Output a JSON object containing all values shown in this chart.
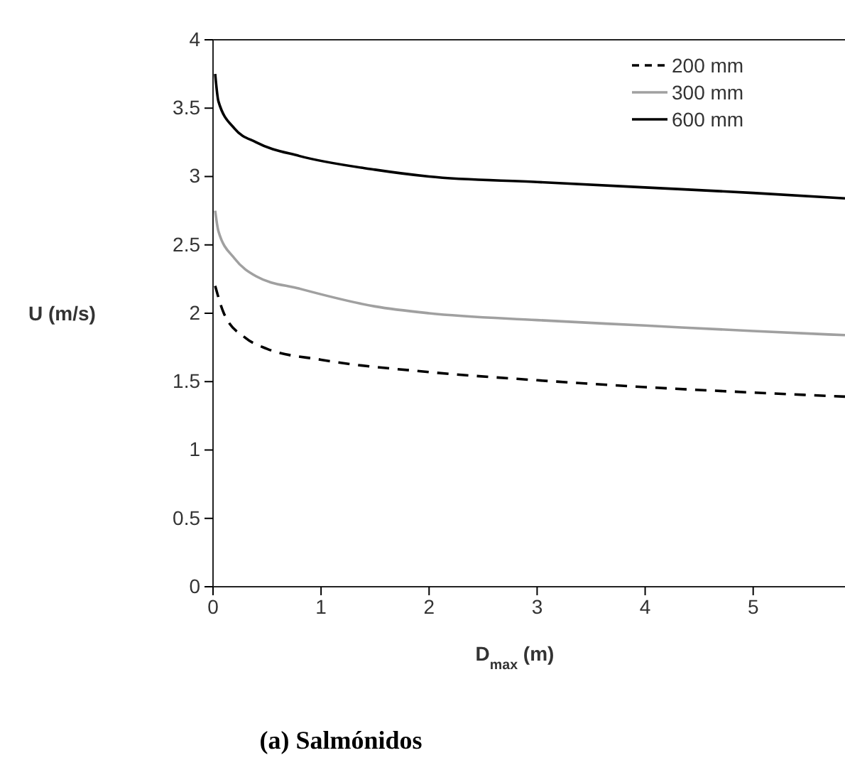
{
  "chart_data": {
    "type": "line",
    "title": "(a) Salmónidos",
    "xlabel": "D$_{max}$ (m)",
    "ylabel": "U (m/s)",
    "xlim": [
      0,
      5.85
    ],
    "ylim": [
      0,
      4
    ],
    "xticks": [
      0,
      1,
      2,
      3,
      4,
      5
    ],
    "yticks": [
      0,
      0.5,
      1,
      1.5,
      2,
      2.5,
      3,
      3.5,
      4
    ],
    "legend": "top right",
    "grid": false,
    "marker": "none",
    "series": [
      {
        "name": "200 mm",
        "color": "#000000",
        "line_style": "dashed",
        "x": [
          0.02,
          0.1,
          0.3,
          0.5,
          1,
          2,
          3,
          4,
          5,
          5.85
        ],
        "values": [
          2.2,
          2.0,
          1.82,
          1.74,
          1.66,
          1.57,
          1.51,
          1.46,
          1.42,
          1.39
        ]
      },
      {
        "name": "300 mm",
        "color": "#a0a0a0",
        "line_style": "solid",
        "x": [
          0.02,
          0.05,
          0.2,
          0.4,
          0.8,
          1.5,
          2,
          3,
          4,
          5,
          5.85
        ],
        "values": [
          2.75,
          2.6,
          2.4,
          2.27,
          2.18,
          2.05,
          2.0,
          1.95,
          1.91,
          1.87,
          1.84
        ]
      },
      {
        "name": "600 mm",
        "color": "#000000",
        "line_style": "solid",
        "x": [
          0.02,
          0.05,
          0.2,
          0.4,
          0.8,
          1.5,
          2,
          3,
          4,
          5,
          5.85
        ],
        "values": [
          3.75,
          3.55,
          3.35,
          3.25,
          3.15,
          3.05,
          3.0,
          2.96,
          2.92,
          2.88,
          2.84
        ]
      }
    ]
  }
}
